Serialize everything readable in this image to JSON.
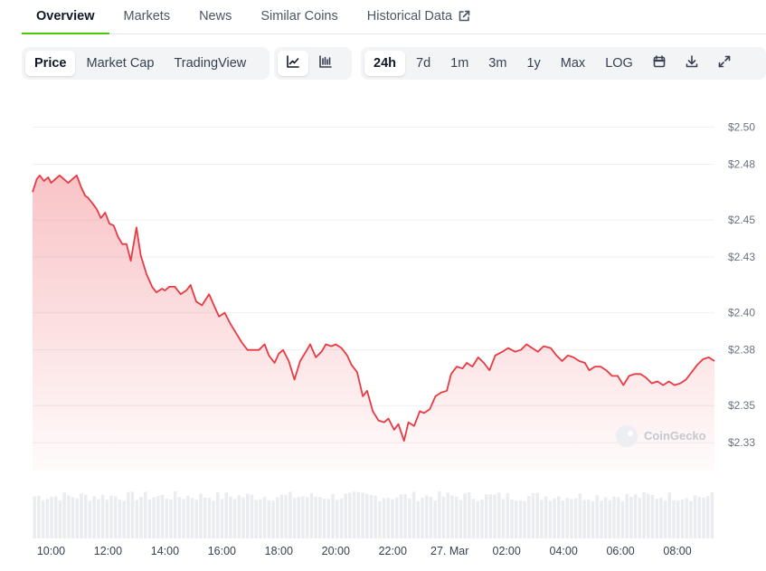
{
  "tabs": [
    {
      "label": "Overview"
    },
    {
      "label": "Markets"
    },
    {
      "label": "News"
    },
    {
      "label": "Similar Coins"
    },
    {
      "label": "Historical Data"
    }
  ],
  "toolbar": {
    "chart_types": [
      "Price",
      "Market Cap",
      "TradingView"
    ],
    "active_chart_type": "Price",
    "view_icons": [
      "line-chart-icon",
      "candlestick-chart-icon"
    ],
    "ranges": [
      "24h",
      "7d",
      "1m",
      "3m",
      "1y",
      "Max",
      "LOG"
    ],
    "active_range": "24h",
    "tool_icons": [
      "calendar-icon",
      "download-icon",
      "expand-icon"
    ]
  },
  "watermark": "CoinGecko",
  "colors": {
    "line": "#ea3943",
    "accent": "#4bcc00",
    "grid": "#eef0f3",
    "volume": "#d9dde2"
  },
  "chart_data": {
    "type": "area",
    "title": "",
    "xlabel": "",
    "ylabel": "",
    "ylim": [
      2.315,
      2.51
    ],
    "y_ticks": [
      "$2.50",
      "$2.48",
      "$2.45",
      "$2.43",
      "$2.40",
      "$2.38",
      "$2.35",
      "$2.33"
    ],
    "y_tick_values": [
      2.5,
      2.48,
      2.45,
      2.43,
      2.4,
      2.38,
      2.35,
      2.33
    ],
    "x_ticks": [
      "10:00",
      "12:00",
      "14:00",
      "16:00",
      "18:00",
      "20:00",
      "22:00",
      "27. Mar",
      "02:00",
      "04:00",
      "06:00",
      "08:00"
    ],
    "x_tick_hours": [
      10,
      12,
      14,
      16,
      18,
      20,
      22,
      24,
      26,
      28,
      30,
      32
    ],
    "x_range_hours": [
      9.35,
      33.3
    ],
    "grid": true,
    "series": [
      {
        "x": [
          9.35,
          9.5,
          9.6,
          9.75,
          9.9,
          10.0,
          10.15,
          10.3,
          10.45,
          10.6,
          10.75,
          10.9,
          11.05,
          11.2,
          11.3,
          11.45,
          11.6,
          11.75,
          11.9,
          12.05,
          12.2,
          12.35,
          12.5,
          12.65,
          12.8,
          13.0,
          13.15,
          13.35,
          13.55,
          13.7,
          13.9,
          14.0,
          14.15,
          14.35,
          14.55,
          14.75,
          14.9,
          15.1,
          15.3,
          15.55,
          15.75,
          15.9,
          16.1,
          16.3,
          16.5,
          16.7,
          16.9,
          17.1,
          17.3,
          17.5,
          17.65,
          17.85,
          18.0,
          18.15,
          18.35,
          18.55,
          18.75,
          18.95,
          19.1,
          19.3,
          19.5,
          19.65,
          19.85,
          20.0,
          20.2,
          20.4,
          20.55,
          20.75,
          20.95,
          21.1,
          21.3,
          21.5,
          21.7,
          21.85,
          22.05,
          22.2,
          22.4,
          22.55,
          22.75,
          22.95,
          23.1,
          23.3,
          23.5,
          23.7,
          23.9,
          24.05,
          24.25,
          24.45,
          24.6,
          24.8,
          25.0,
          25.2,
          25.4,
          25.6,
          25.85,
          26.05,
          26.3,
          26.5,
          26.7,
          26.9,
          27.1,
          27.3,
          27.55,
          27.75,
          27.95,
          28.15,
          28.35,
          28.55,
          28.75,
          28.9,
          29.1,
          29.3,
          29.5,
          29.7,
          29.9,
          30.1,
          30.3,
          30.5,
          30.7,
          30.9,
          31.1,
          31.3,
          31.5,
          31.7,
          31.9,
          32.1,
          32.3,
          32.5,
          32.7,
          32.9,
          33.1,
          33.3
        ],
        "values": [
          2.465,
          2.472,
          2.474,
          2.471,
          2.473,
          2.47,
          2.472,
          2.474,
          2.472,
          2.47,
          2.472,
          2.474,
          2.468,
          2.463,
          2.462,
          2.459,
          2.456,
          2.451,
          2.454,
          2.448,
          2.447,
          2.441,
          2.437,
          2.437,
          2.428,
          2.446,
          2.431,
          2.421,
          2.414,
          2.411,
          2.413,
          2.412,
          2.414,
          2.414,
          2.41,
          2.412,
          2.415,
          2.406,
          2.404,
          2.41,
          2.403,
          2.398,
          2.4,
          2.394,
          2.389,
          2.384,
          2.38,
          2.38,
          2.38,
          2.383,
          2.377,
          2.373,
          2.378,
          2.38,
          2.374,
          2.364,
          2.374,
          2.379,
          2.383,
          2.376,
          2.379,
          2.383,
          2.382,
          2.383,
          2.381,
          2.377,
          2.372,
          2.368,
          2.355,
          2.358,
          2.347,
          2.342,
          2.341,
          2.343,
          2.337,
          2.34,
          2.331,
          2.341,
          2.339,
          2.347,
          2.346,
          2.348,
          2.355,
          2.357,
          2.358,
          2.367,
          2.371,
          2.37,
          2.373,
          2.371,
          2.376,
          2.373,
          2.369,
          2.377,
          2.379,
          2.381,
          2.379,
          2.38,
          2.383,
          2.381,
          2.379,
          2.382,
          2.381,
          2.377,
          2.374,
          2.377,
          2.376,
          2.374,
          2.373,
          2.369,
          2.371,
          2.371,
          2.369,
          2.366,
          2.366,
          2.361,
          2.366,
          2.367,
          2.367,
          2.365,
          2.362,
          2.363,
          2.361,
          2.363,
          2.361,
          2.362,
          2.364,
          2.368,
          2.372,
          2.375,
          2.376,
          2.374
        ]
      }
    ],
    "volume": {
      "bars": 160,
      "note": "relative volume bars shown beneath the price area"
    }
  }
}
